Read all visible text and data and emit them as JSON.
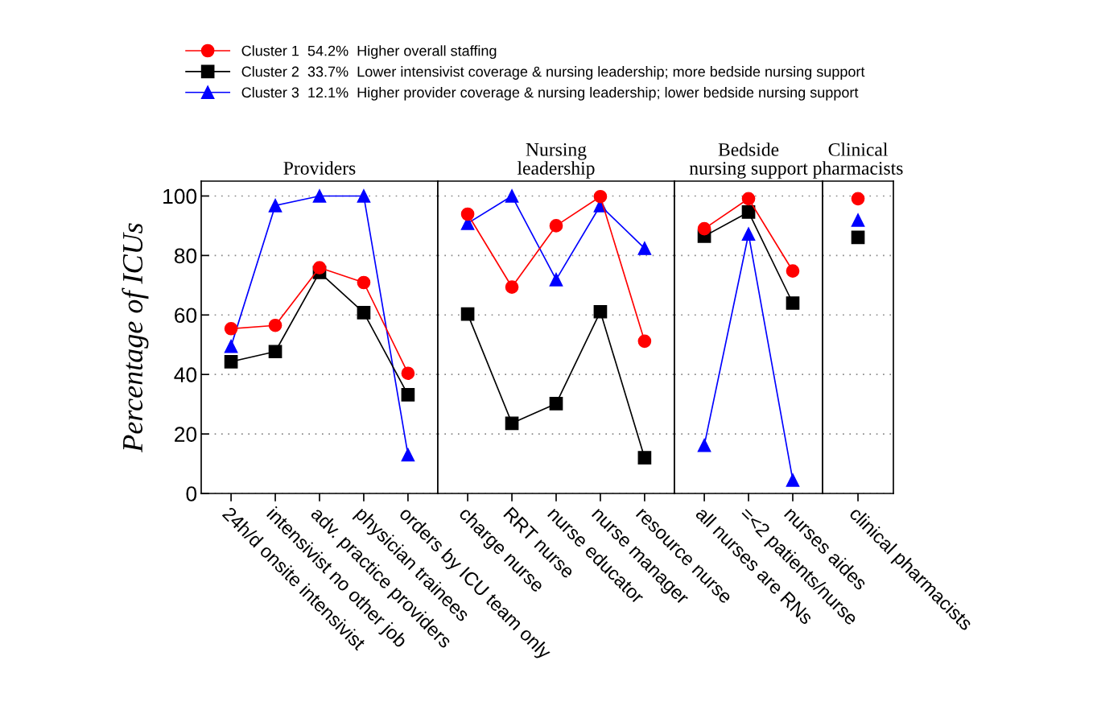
{
  "chart_data": [
    {
      "type": "line",
      "title": "Providers",
      "ylabel": "Percentage of ICUs",
      "categories": [
        "24h/d onsite intensivist",
        "intensivist no other job",
        "adv. practice providers",
        "physician trainees",
        "orders by ICU team only"
      ],
      "ylim": [
        0,
        105
      ],
      "yticks": [
        0,
        20,
        40,
        60,
        80,
        100
      ],
      "grid": "y",
      "legend": "top",
      "line_style": "solid",
      "series": [
        {
          "name": "Cluster 1  54.2%  Higher overall staffing",
          "color": "#ff0000",
          "marker": "circle",
          "values": [
            55.4,
            56.5,
            75.9,
            70.9,
            40.4
          ]
        },
        {
          "name": "Cluster 2  33.7%  Lower intensivist coverage & nursing leadership; more bedside nursing support",
          "color": "#000000",
          "marker": "square",
          "values": [
            44.3,
            47.7,
            74.3,
            60.8,
            33.2
          ]
        },
        {
          "name": "Cluster 3  12.1%  Higher provider coverage & nursing leadership; lower bedside nursing support",
          "color": "#0000ff",
          "marker": "triangle",
          "values": [
            49.5,
            96.8,
            100,
            100,
            13
          ]
        }
      ]
    },
    {
      "type": "line",
      "title": "Nursing\nleadership",
      "categories": [
        "charge nurse",
        "RRT nurse",
        "nurse educator",
        "nurse manager",
        "resource nurse"
      ],
      "ylim": [
        0,
        105
      ],
      "grid": "y",
      "tick_labels": "x",
      "line_style": "solid",
      "series": [
        {
          "color": "#ff0000",
          "marker": "circle",
          "values": [
            93.9,
            69.4,
            90,
            99.8,
            51.2
          ]
        },
        {
          "color": "#000000",
          "marker": "square",
          "values": [
            60.3,
            23.6,
            30.2,
            61.1,
            12
          ]
        },
        {
          "color": "#0000ff",
          "marker": "triangle",
          "values": [
            90.8,
            100,
            71.9,
            96.8,
            82.4
          ]
        }
      ]
    },
    {
      "type": "line",
      "title": "Bedside\nnursing support",
      "categories": [
        "all nurses are RNs",
        "=<2 patients/nurse",
        "nurses aides"
      ],
      "ylim": [
        0,
        105
      ],
      "grid": "y",
      "tick_labels": "x",
      "line_style": "solid",
      "series": [
        {
          "color": "#ff0000",
          "marker": "circle",
          "values": [
            89,
            99.1,
            74.8
          ]
        },
        {
          "color": "#000000",
          "marker": "square",
          "values": [
            86.5,
            94.6,
            64
          ]
        },
        {
          "color": "#0000ff",
          "marker": "triangle",
          "values": [
            16.2,
            87.2,
            4.5
          ]
        }
      ]
    },
    {
      "type": "line",
      "title": "Clinical\npharmacists",
      "categories": [
        "clinical pharmacists"
      ],
      "ylim": [
        0,
        105
      ],
      "grid": "y",
      "tick_labels": "x",
      "line_style": "solid",
      "series": [
        {
          "color": "#ff0000",
          "marker": "circle",
          "values": [
            99.1
          ]
        },
        {
          "color": "#000000",
          "marker": "square",
          "values": [
            86.1
          ]
        },
        {
          "color": "#0000ff",
          "marker": "triangle",
          "values": [
            91.9
          ]
        }
      ]
    }
  ]
}
